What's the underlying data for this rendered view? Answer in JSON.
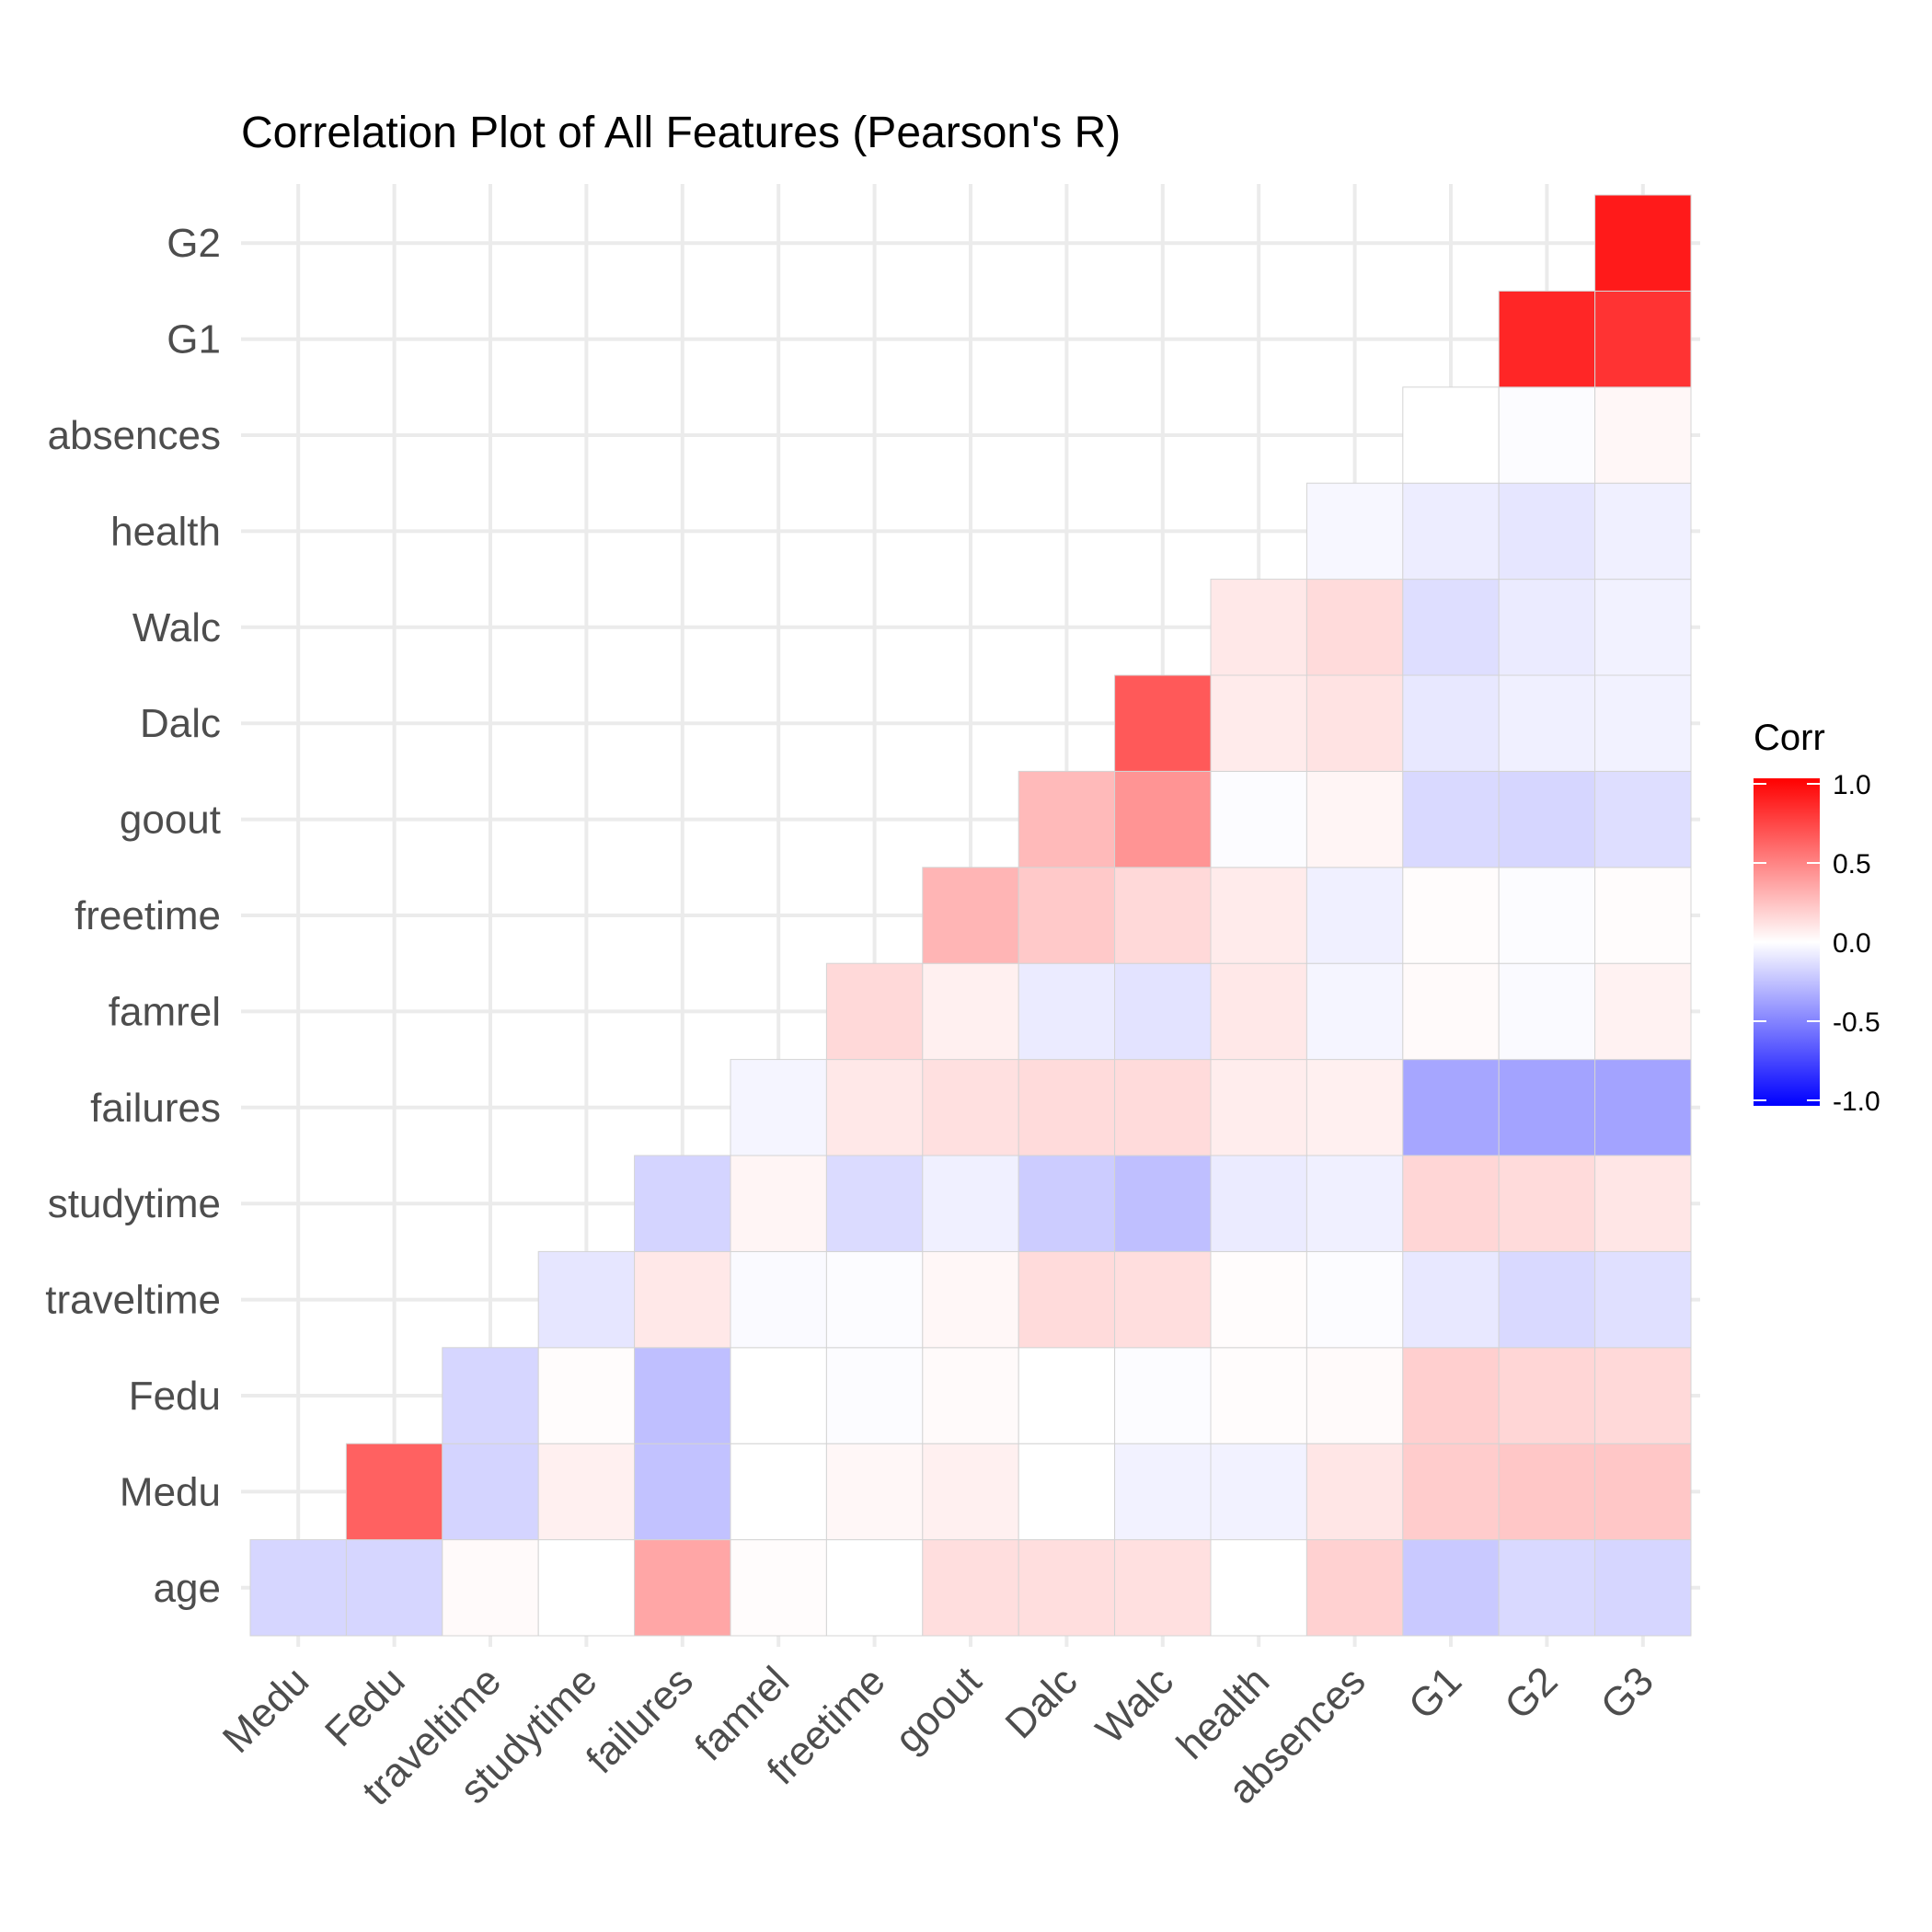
{
  "chart_data": {
    "type": "heatmap",
    "title": "Correlation Plot of All Features (Pearson's R)",
    "xlabel": "",
    "ylabel": "",
    "x_categories": [
      "Medu",
      "Fedu",
      "traveltime",
      "studytime",
      "failures",
      "famrel",
      "freetime",
      "goout",
      "Dalc",
      "Walc",
      "health",
      "absences",
      "G1",
      "G2",
      "G3"
    ],
    "y_categories": [
      "age",
      "Medu",
      "Fedu",
      "traveltime",
      "studytime",
      "failures",
      "famrel",
      "freetime",
      "goout",
      "Dalc",
      "Walc",
      "health",
      "absences",
      "G1",
      "G2"
    ],
    "values": [
      [
        -0.16,
        -0.16,
        0.02,
        -0.0,
        0.35,
        0.01,
        0.0,
        0.13,
        0.13,
        0.12,
        -0.0,
        0.18,
        -0.21,
        -0.15,
        -0.16
      ],
      [
        null,
        0.62,
        -0.17,
        0.06,
        -0.24,
        -0.0,
        0.03,
        0.06,
        0.0,
        -0.05,
        -0.05,
        0.1,
        0.2,
        0.22,
        0.22
      ],
      [
        null,
        null,
        -0.16,
        0.01,
        -0.25,
        -0.0,
        -0.01,
        0.02,
        0.0,
        -0.01,
        0.01,
        0.02,
        0.19,
        0.16,
        0.15
      ],
      [
        null,
        null,
        null,
        -0.1,
        0.09,
        -0.02,
        -0.01,
        0.03,
        0.14,
        0.13,
        0.01,
        -0.01,
        -0.09,
        -0.15,
        -0.12
      ],
      [
        null,
        null,
        null,
        null,
        -0.17,
        0.04,
        -0.14,
        -0.06,
        -0.2,
        -0.25,
        -0.08,
        -0.06,
        0.16,
        0.14,
        0.1
      ],
      [
        null,
        null,
        null,
        null,
        null,
        -0.04,
        0.09,
        0.12,
        0.14,
        0.14,
        0.07,
        0.06,
        -0.35,
        -0.36,
        -0.36
      ],
      [
        null,
        null,
        null,
        null,
        null,
        null,
        0.15,
        0.06,
        -0.08,
        -0.11,
        0.09,
        -0.04,
        0.02,
        -0.02,
        0.05
      ],
      [
        null,
        null,
        null,
        null,
        null,
        null,
        null,
        0.29,
        0.21,
        0.15,
        0.08,
        -0.06,
        0.01,
        -0.01,
        0.01
      ],
      [
        null,
        null,
        null,
        null,
        null,
        null,
        null,
        null,
        0.27,
        0.42,
        -0.01,
        0.04,
        -0.15,
        -0.16,
        -0.13
      ],
      [
        null,
        null,
        null,
        null,
        null,
        null,
        null,
        null,
        null,
        0.65,
        0.08,
        0.11,
        -0.09,
        -0.06,
        -0.05
      ],
      [
        null,
        null,
        null,
        null,
        null,
        null,
        null,
        null,
        null,
        null,
        0.09,
        0.14,
        -0.13,
        -0.08,
        -0.05
      ],
      [
        null,
        null,
        null,
        null,
        null,
        null,
        null,
        null,
        null,
        null,
        null,
        -0.03,
        -0.07,
        -0.1,
        -0.06
      ],
      [
        null,
        null,
        null,
        null,
        null,
        null,
        null,
        null,
        null,
        null,
        null,
        null,
        -0.0,
        -0.01,
        0.03
      ],
      [
        null,
        null,
        null,
        null,
        null,
        null,
        null,
        null,
        null,
        null,
        null,
        null,
        null,
        0.85,
        0.8
      ],
      [
        null,
        null,
        null,
        null,
        null,
        null,
        null,
        null,
        null,
        null,
        null,
        null,
        null,
        null,
        0.9
      ]
    ],
    "zlim": [
      -1.0,
      1.0
    ],
    "grid": true,
    "legend": {
      "title": "Corr",
      "position": "right",
      "ticks": [
        1.0,
        0.5,
        0.0,
        -0.5,
        -1.0
      ],
      "tick_labels": [
        "1.0",
        "0.5",
        "0.0",
        "-0.5",
        "-1.0"
      ],
      "colors": {
        "low": "#0000ff",
        "mid": "#ffffff",
        "high": "#ff0000"
      }
    }
  }
}
